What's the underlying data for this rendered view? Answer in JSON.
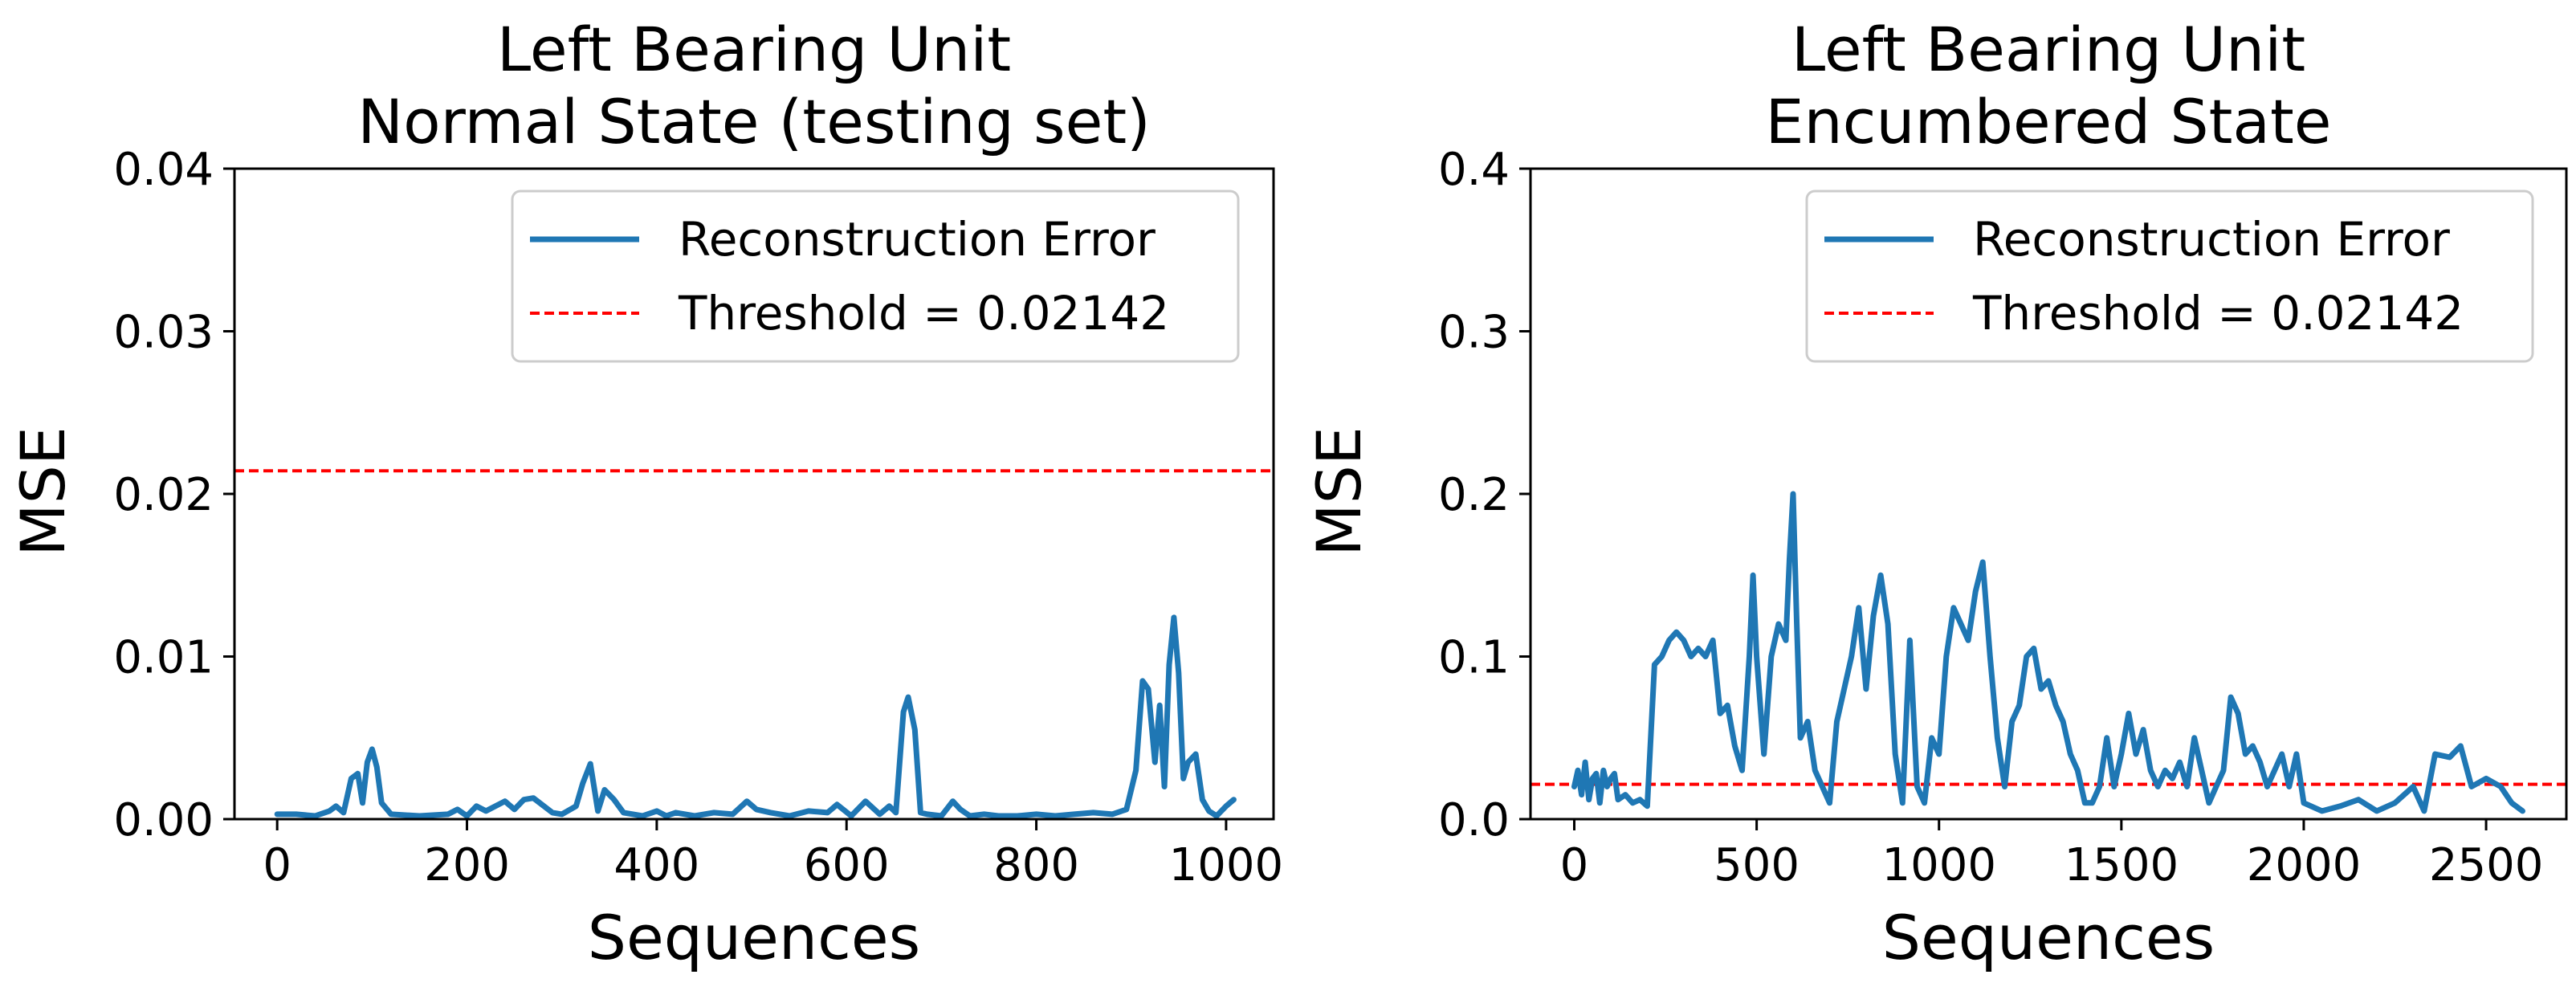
{
  "chart_data": [
    {
      "type": "line",
      "title_line1": "Left Bearing Unit",
      "title_line2": "Normal State (testing set)",
      "xlabel": "Sequences",
      "ylabel": "MSE",
      "xlim": [
        -45,
        1050
      ],
      "ylim": [
        0,
        0.04
      ],
      "xticks": [
        0,
        200,
        400,
        600,
        800,
        1000
      ],
      "yticks": [
        0.0,
        0.01,
        0.02,
        0.03,
        0.04
      ],
      "ytick_labels": [
        "0.00",
        "0.01",
        "0.02",
        "0.03",
        "0.04"
      ],
      "legend_position": "top-right",
      "series": [
        {
          "name": "Reconstruction Error",
          "color": "#1f77b4",
          "x": [
            0,
            20,
            40,
            55,
            62,
            70,
            78,
            85,
            90,
            95,
            100,
            105,
            110,
            120,
            150,
            180,
            190,
            200,
            210,
            220,
            240,
            250,
            260,
            270,
            290,
            300,
            315,
            322,
            330,
            338,
            345,
            355,
            365,
            375,
            385,
            400,
            410,
            420,
            440,
            460,
            480,
            495,
            505,
            520,
            540,
            560,
            580,
            590,
            605,
            620,
            635,
            645,
            652,
            660,
            665,
            672,
            678,
            685,
            700,
            712,
            720,
            730,
            745,
            760,
            780,
            800,
            820,
            840,
            860,
            880,
            895,
            905,
            912,
            918,
            925,
            930,
            935,
            940,
            945,
            950,
            955,
            960,
            968,
            975,
            982,
            990,
            1000,
            1008
          ],
          "values": [
            0.0003,
            0.0003,
            0.0002,
            0.0005,
            0.0008,
            0.0004,
            0.0025,
            0.0028,
            0.001,
            0.0035,
            0.0043,
            0.0032,
            0.001,
            0.0003,
            0.0002,
            0.0003,
            0.0006,
            0.0002,
            0.0008,
            0.0005,
            0.0011,
            0.0006,
            0.0012,
            0.0013,
            0.0004,
            0.0003,
            0.0008,
            0.0022,
            0.0034,
            0.0005,
            0.0018,
            0.0012,
            0.0004,
            0.0003,
            0.0002,
            0.0005,
            0.0002,
            0.0004,
            0.0002,
            0.0004,
            0.0003,
            0.0011,
            0.0006,
            0.0004,
            0.0002,
            0.0005,
            0.0004,
            0.0009,
            0.0002,
            0.0011,
            0.0003,
            0.0008,
            0.0004,
            0.0066,
            0.0075,
            0.0055,
            0.0004,
            0.0003,
            0.0002,
            0.0011,
            0.0006,
            0.0002,
            0.0003,
            0.0002,
            0.0002,
            0.0003,
            0.0002,
            0.0003,
            0.0004,
            0.0003,
            0.0006,
            0.003,
            0.0085,
            0.008,
            0.0035,
            0.007,
            0.002,
            0.0095,
            0.0124,
            0.009,
            0.0025,
            0.0035,
            0.004,
            0.0012,
            0.0005,
            0.0002,
            0.0008,
            0.0012
          ]
        },
        {
          "name": "Threshold = 0.02142",
          "color": "#ff0000",
          "constant": 0.02142,
          "dashed": true
        }
      ]
    },
    {
      "type": "line",
      "title_line1": "Left Bearing Unit",
      "title_line2": "Encumbered State",
      "xlabel": "Sequences",
      "ylabel": "MSE",
      "xlim": [
        -120,
        2720
      ],
      "ylim": [
        0,
        0.4
      ],
      "xticks": [
        0,
        500,
        1000,
        1500,
        2000,
        2500
      ],
      "yticks": [
        0.0,
        0.1,
        0.2,
        0.3,
        0.4
      ],
      "ytick_labels": [
        "0.0",
        "0.1",
        "0.2",
        "0.3",
        "0.4"
      ],
      "legend_position": "top-right",
      "series": [
        {
          "name": "Reconstruction Error",
          "color": "#1f77b4",
          "x": [
            0,
            10,
            20,
            30,
            40,
            50,
            60,
            70,
            80,
            90,
            100,
            110,
            120,
            140,
            160,
            180,
            200,
            220,
            240,
            260,
            280,
            300,
            320,
            340,
            360,
            380,
            400,
            420,
            440,
            460,
            480,
            490,
            500,
            520,
            540,
            560,
            580,
            590,
            600,
            610,
            620,
            640,
            660,
            680,
            700,
            720,
            740,
            760,
            780,
            800,
            820,
            840,
            860,
            880,
            900,
            920,
            940,
            960,
            980,
            1000,
            1020,
            1040,
            1060,
            1080,
            1100,
            1120,
            1140,
            1160,
            1180,
            1200,
            1220,
            1240,
            1260,
            1280,
            1300,
            1320,
            1340,
            1360,
            1380,
            1400,
            1420,
            1440,
            1460,
            1480,
            1500,
            1520,
            1540,
            1560,
            1580,
            1600,
            1620,
            1640,
            1660,
            1680,
            1700,
            1720,
            1740,
            1760,
            1780,
            1800,
            1820,
            1840,
            1860,
            1880,
            1900,
            1920,
            1940,
            1960,
            1980,
            2000,
            2050,
            2100,
            2150,
            2200,
            2250,
            2300,
            2330,
            2360,
            2400,
            2430,
            2460,
            2500,
            2540,
            2570,
            2600
          ],
          "values": [
            0.02,
            0.03,
            0.015,
            0.035,
            0.012,
            0.025,
            0.028,
            0.01,
            0.03,
            0.02,
            0.025,
            0.028,
            0.012,
            0.015,
            0.01,
            0.012,
            0.008,
            0.095,
            0.1,
            0.11,
            0.115,
            0.11,
            0.1,
            0.105,
            0.1,
            0.11,
            0.065,
            0.07,
            0.045,
            0.03,
            0.1,
            0.15,
            0.1,
            0.04,
            0.1,
            0.12,
            0.11,
            0.16,
            0.2,
            0.12,
            0.05,
            0.06,
            0.03,
            0.02,
            0.01,
            0.06,
            0.08,
            0.1,
            0.13,
            0.08,
            0.125,
            0.15,
            0.12,
            0.04,
            0.01,
            0.11,
            0.02,
            0.01,
            0.05,
            0.04,
            0.1,
            0.13,
            0.12,
            0.11,
            0.14,
            0.158,
            0.1,
            0.05,
            0.02,
            0.06,
            0.07,
            0.1,
            0.105,
            0.08,
            0.085,
            0.07,
            0.06,
            0.04,
            0.03,
            0.01,
            0.01,
            0.02,
            0.05,
            0.02,
            0.04,
            0.065,
            0.04,
            0.055,
            0.03,
            0.02,
            0.03,
            0.025,
            0.035,
            0.02,
            0.05,
            0.03,
            0.01,
            0.02,
            0.03,
            0.075,
            0.065,
            0.04,
            0.045,
            0.035,
            0.02,
            0.03,
            0.04,
            0.02,
            0.04,
            0.01,
            0.005,
            0.008,
            0.012,
            0.005,
            0.01,
            0.02,
            0.005,
            0.04,
            0.038,
            0.045,
            0.02,
            0.025,
            0.02,
            0.01,
            0.005
          ]
        },
        {
          "name": "Threshold = 0.02142",
          "color": "#ff0000",
          "constant": 0.02142,
          "dashed": true
        }
      ]
    }
  ]
}
